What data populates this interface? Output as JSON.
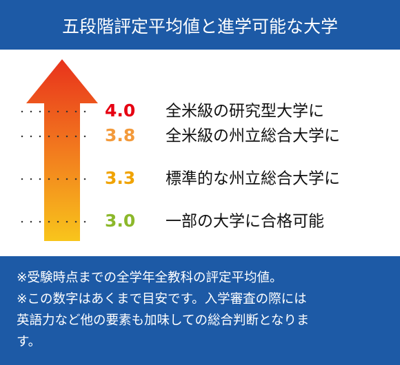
{
  "header": {
    "title": "五段階評定平均値と進学可能な大学"
  },
  "levels": [
    {
      "value": "4.0",
      "label": "全米級の研究型大学に"
    },
    {
      "value": "3.8",
      "label": "全米級の州立総合大学に"
    },
    {
      "value": "3.3",
      "label": "標準的な州立総合大学に"
    },
    {
      "value": "3.0",
      "label": "一部の大学に合格可能"
    }
  ],
  "notes": [
    "※受験時点までの全学年全教科の評定平均値。",
    "※この数字はあくまで目安です。入学審査の際には",
    "英語力など他の要素も加味しての総合判断となりま",
    "す。"
  ]
}
